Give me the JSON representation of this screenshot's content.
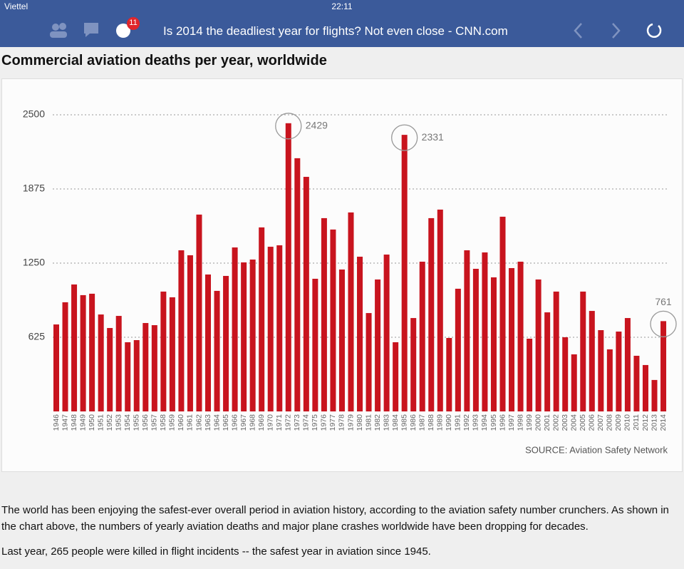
{
  "status_bar": {
    "carrier": "Viettel",
    "time": "22:11"
  },
  "toolbar": {
    "badge": "11",
    "page_title": "Is 2014 the deadliest year for flights? Not even close - CNN.com"
  },
  "chart_data": {
    "type": "bar",
    "title": "Commercial aviation deaths per year, worldwide",
    "categories": [
      "1946",
      "1947",
      "1948",
      "1949",
      "1950",
      "1951",
      "1952",
      "1953",
      "1954",
      "1955",
      "1956",
      "1957",
      "1958",
      "1959",
      "1960",
      "1961",
      "1962",
      "1963",
      "1964",
      "1965",
      "1966",
      "1967",
      "1968",
      "1969",
      "1970",
      "1971",
      "1972",
      "1973",
      "1974",
      "1975",
      "1976",
      "1977",
      "1978",
      "1979",
      "1980",
      "1981",
      "1982",
      "1983",
      "1984",
      "1985",
      "1986",
      "1987",
      "1988",
      "1989",
      "1990",
      "1991",
      "1992",
      "1993",
      "1994",
      "1995",
      "1996",
      "1997",
      "1998",
      "1999",
      "2000",
      "2001",
      "2002",
      "2003",
      "2004",
      "2005",
      "2006",
      "2007",
      "2008",
      "2009",
      "2010",
      "2011",
      "2012",
      "2013",
      "2014"
    ],
    "values": [
      733,
      920,
      1070,
      980,
      992,
      817,
      703,
      805,
      583,
      601,
      745,
      727,
      1010,
      962,
      1358,
      1316,
      1659,
      1154,
      1016,
      1142,
      1382,
      1256,
      1280,
      1551,
      1388,
      1400,
      2429,
      2134,
      1977,
      1118,
      1629,
      1533,
      1196,
      1677,
      1304,
      829,
      1112,
      1322,
      583,
      2331,
      787,
      1262,
      1629,
      1701,
      619,
      1034,
      1358,
      1202,
      1340,
      1130,
      1641,
      1208,
      1262,
      613,
      1112,
      835,
      1010,
      625,
      481,
      1010,
      847,
      685,
      523,
      673,
      787,
      469,
      391,
      265,
      761
    ],
    "value_labels": [
      null,
      null,
      null,
      null,
      null,
      null,
      null,
      null,
      null,
      null,
      null,
      null,
      null,
      null,
      null,
      null,
      null,
      null,
      null,
      null,
      null,
      null,
      null,
      null,
      null,
      null,
      "2429",
      null,
      null,
      null,
      null,
      null,
      null,
      null,
      null,
      null,
      null,
      null,
      null,
      "2331",
      null,
      null,
      null,
      null,
      null,
      null,
      null,
      null,
      null,
      null,
      null,
      null,
      null,
      null,
      null,
      null,
      null,
      null,
      null,
      null,
      null,
      null,
      null,
      null,
      null,
      null,
      null,
      null,
      "761"
    ],
    "color": "#c8141e",
    "ylim": [
      0,
      2500
    ],
    "yticks": [
      625,
      1250,
      1875,
      2500
    ],
    "grid": true,
    "source": "SOURCE: Aviation Safety Network"
  },
  "article": {
    "paragraphs": [
      "The world has been enjoying the safest-ever overall period in aviation history, according to the aviation safety number crunchers. As shown in the chart above, the numbers of yearly aviation deaths and major plane crashes worldwide have been dropping for decades.",
      "Last year, 265 people were killed in flight incidents -- the safest year in aviation since 1945."
    ]
  }
}
